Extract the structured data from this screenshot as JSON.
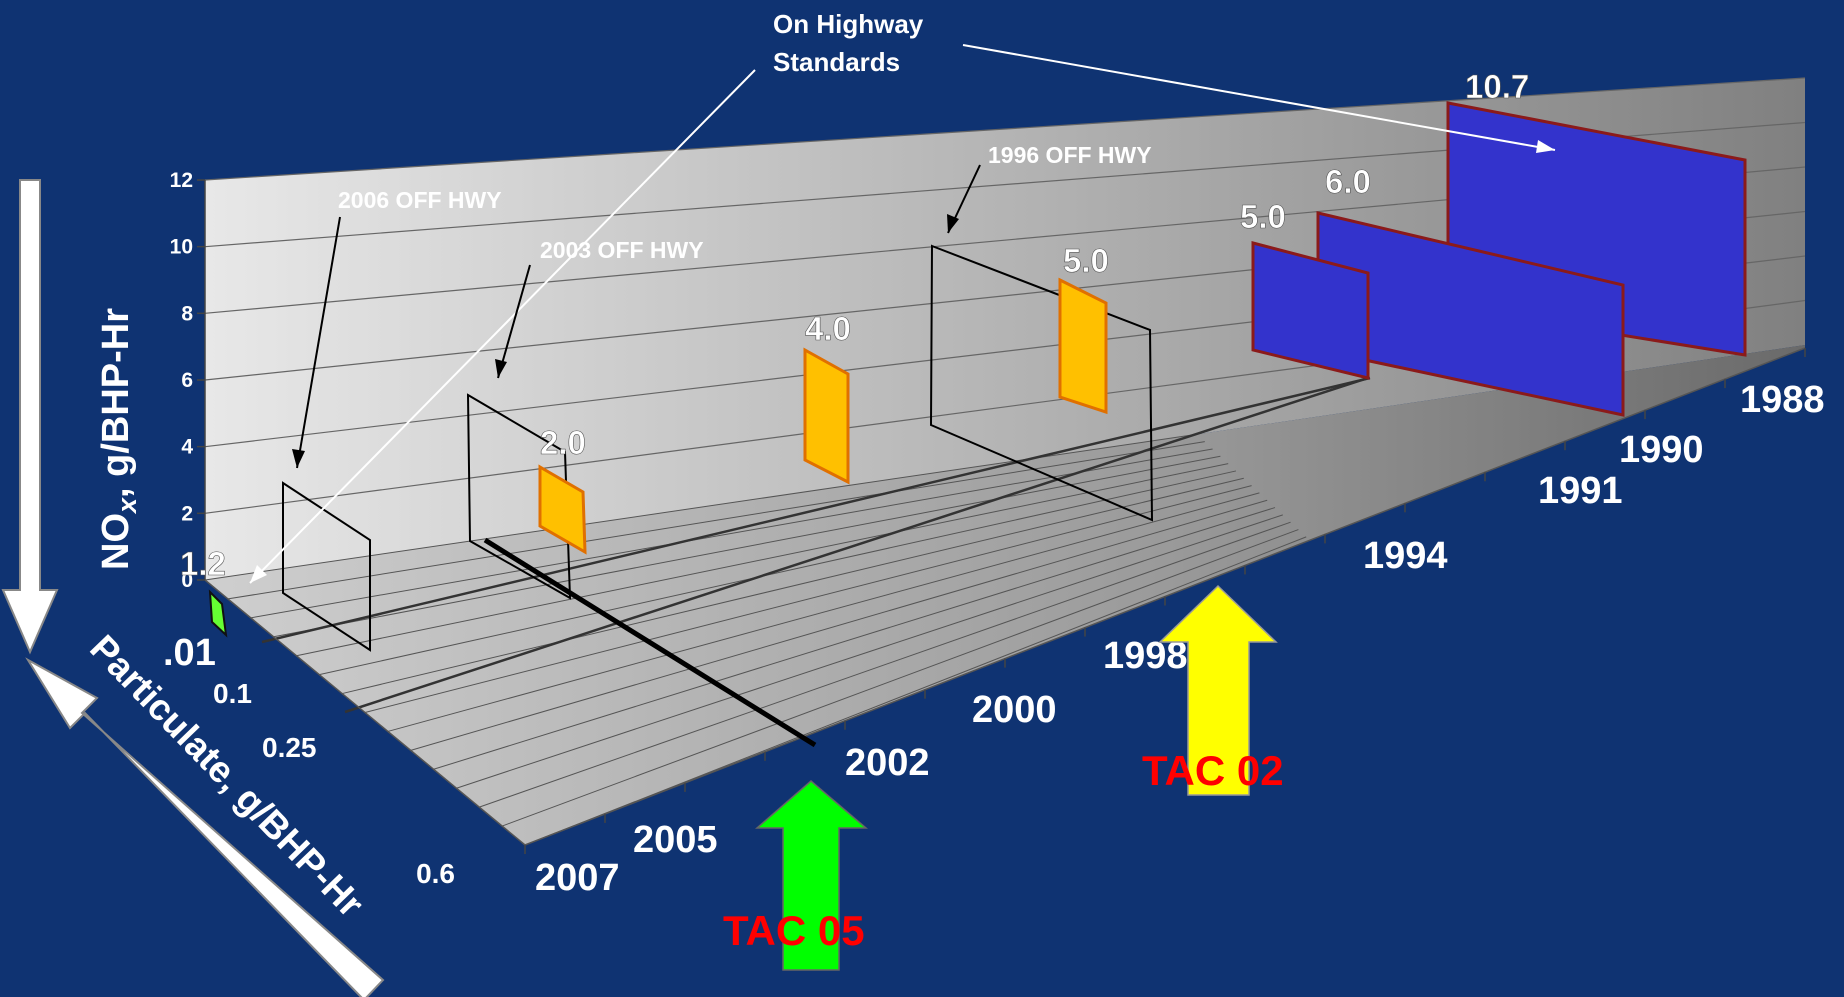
{
  "chart_data": {
    "type": "bar",
    "y_axis": {
      "label_main": "NO",
      "label_sub": "x",
      "label_rest": ", g/BHP-Hr",
      "ticks": [
        "0",
        "2",
        "4",
        "6",
        "8",
        "10",
        "12"
      ],
      "range": [
        0,
        12
      ]
    },
    "particulate_axis": {
      "label": "Particulate, g/BHP-Hr",
      "ticks": [
        ".01",
        "0.1",
        "0.25",
        "0.6"
      ]
    },
    "year_axis": {
      "ticks": [
        "2007",
        "2005",
        "2002",
        "2000",
        "1998",
        "1994",
        "1991",
        "1990",
        "1988"
      ]
    },
    "series": [
      {
        "name": "On Highway Standards",
        "color": "#3333cc",
        "edge_color": "#8b1a1a",
        "values": [
          {
            "label": "10.7",
            "nox": 10.7,
            "pm": 0.6,
            "years": [
              "1988",
              "1990"
            ]
          },
          {
            "label": "6.0",
            "nox": 6.0,
            "pm": 0.25,
            "years": [
              "1990",
              "1994"
            ]
          },
          {
            "label": "5.0",
            "nox": 5.0,
            "pm": 0.1,
            "years": [
              "1991",
              "1994"
            ]
          },
          {
            "label": "5.0",
            "nox": 5.0,
            "pm": 0.1,
            "years": [
              "1998"
            ]
          },
          {
            "label": "4.0",
            "nox": 4.0,
            "pm": 0.1,
            "years": [
              "2000"
            ]
          },
          {
            "label": "2.0",
            "nox": 2.0,
            "pm": 0.1,
            "years": [
              "2002"
            ]
          },
          {
            "label": "1.2",
            "nox": 1.2,
            "pm": 0.01,
            "years": [
              "2007"
            ]
          }
        ]
      }
    ],
    "annotations": {
      "on_highway": [
        "On Highway",
        "Standards"
      ],
      "off_1996": "1996 OFF HWY",
      "off_2003": "2003 OFF HWY",
      "off_2006": "2006 OFF HWY",
      "tac02": "TAC 02",
      "tac05": "TAC 05"
    }
  },
  "colors": {
    "background": "#0f3372",
    "green_bar": "#66ff33",
    "orange_bar": "#ffc000",
    "blue_bar": "#3333cc",
    "tac02_arrow": "#ffff00",
    "tac05_arrow": "#00ff00",
    "tac_label": "#ff0000"
  }
}
